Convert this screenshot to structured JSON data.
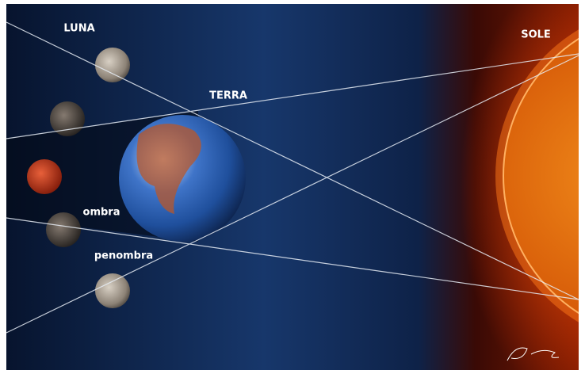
{
  "nodes": [
    {
      "label": "LUNA"
    },
    {
      "label": "TERRA"
    },
    {
      "label": "SOLE"
    },
    {
      "label": "ombra"
    },
    {
      "label": "penombra"
    }
  ]
}
